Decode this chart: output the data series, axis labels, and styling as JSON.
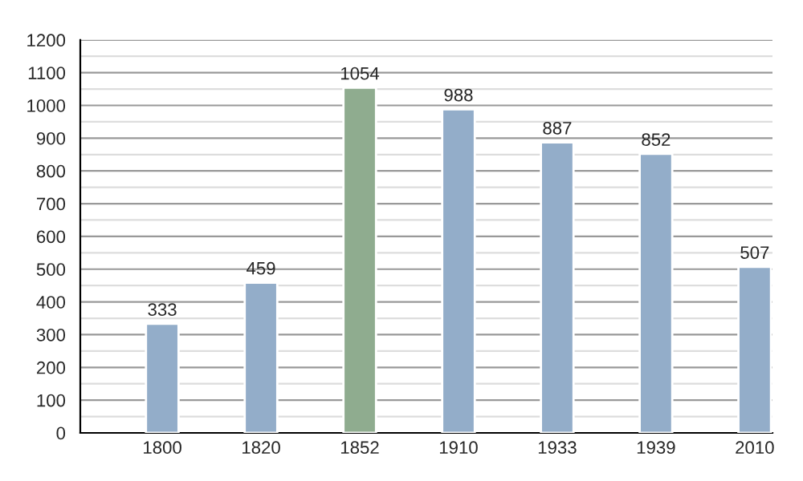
{
  "chart_data": {
    "type": "bar",
    "categories": [
      "1800",
      "1820",
      "1852",
      "1910",
      "1933",
      "1939",
      "2010"
    ],
    "values": [
      333,
      459,
      1054,
      988,
      887,
      852,
      507
    ],
    "colors": [
      "#93adc9",
      "#93adc9",
      "#8fac8f",
      "#93adc9",
      "#93adc9",
      "#93adc9",
      "#93adc9"
    ],
    "data_labels": true,
    "ylim": [
      0,
      1200
    ],
    "yticks": [
      0,
      {
        "value": 50,
        "label": null
      },
      100,
      {
        "value": 150,
        "label": null
      },
      200,
      {
        "value": 250,
        "label": null
      },
      300,
      {
        "value": 350,
        "label": null
      },
      400,
      {
        "value": 450,
        "label": null
      },
      500,
      {
        "value": 550,
        "label": null
      },
      600,
      {
        "value": 650,
        "label": null
      },
      700,
      {
        "value": 750,
        "label": null
      },
      800,
      {
        "value": 850,
        "label": null
      },
      900,
      {
        "value": 950,
        "label": null
      },
      1000,
      {
        "value": 1050,
        "label": null
      },
      1100,
      {
        "value": 1150,
        "label": null
      },
      1200
    ],
    "grid": "y"
  }
}
